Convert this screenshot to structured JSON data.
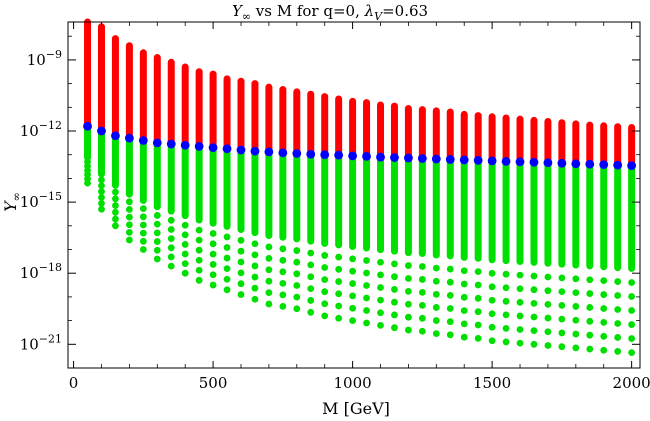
{
  "chart_data": {
    "type": "scatter",
    "title": {
      "y_symbol": "Y",
      "y_sub": "∞",
      "middle": " vs M for q=0, ",
      "lambda_symbol": "λ",
      "lambda_sub": "V",
      "lambda_value": "=0.63"
    },
    "xlabel": "M [GeV]",
    "ylabel": {
      "symbol": "Y",
      "sub": "∞"
    },
    "xlim": [
      -20,
      2030
    ],
    "ylim_log10": [
      -22.0,
      -7.4
    ],
    "x_ticks": [
      0,
      500,
      1000,
      1500,
      2000
    ],
    "x_tick_labels": [
      "0",
      "500",
      "1000",
      "1500",
      "2000"
    ],
    "y_ticks_log10": [
      -21,
      -18,
      -15,
      -12,
      -9
    ],
    "y_tick_labels": [
      {
        "base": "10",
        "exp": "−21"
      },
      {
        "base": "10",
        "exp": "−18"
      },
      {
        "base": "10",
        "exp": "−15"
      },
      {
        "base": "10",
        "exp": "−12"
      },
      {
        "base": "10",
        "exp": "−9"
      }
    ],
    "x_values": [
      50,
      100,
      150,
      200,
      250,
      300,
      350,
      400,
      450,
      500,
      550,
      600,
      650,
      700,
      750,
      800,
      850,
      900,
      950,
      1000,
      1050,
      1100,
      1150,
      1200,
      1250,
      1300,
      1350,
      1400,
      1450,
      1500,
      1550,
      1600,
      1650,
      1700,
      1750,
      1800,
      1850,
      1900,
      1950,
      2000
    ],
    "series": [
      {
        "name": "red (Y∞ above blue)",
        "color": "#ff0000",
        "top_log10": [
          -7.4,
          -7.6,
          -8.1,
          -8.4,
          -8.7,
          -8.9,
          -9.1,
          -9.3,
          -9.5,
          -9.6,
          -9.8,
          -9.9,
          -10.0,
          -10.15,
          -10.25,
          -10.35,
          -10.45,
          -10.55,
          -10.65,
          -10.75,
          -10.8,
          -10.9,
          -10.95,
          -11.05,
          -11.1,
          -11.15,
          -11.2,
          -11.3,
          -11.35,
          -11.4,
          -11.45,
          -11.5,
          -11.55,
          -11.6,
          -11.65,
          -11.7,
          -11.75,
          -11.78,
          -11.82,
          -11.85
        ]
      },
      {
        "name": "blue (boundary)",
        "color": "#0000ff",
        "log10": [
          -11.8,
          -12.0,
          -12.2,
          -12.3,
          -12.4,
          -12.5,
          -12.55,
          -12.6,
          -12.65,
          -12.7,
          -12.75,
          -12.8,
          -12.85,
          -12.88,
          -12.92,
          -12.95,
          -12.98,
          -13.0,
          -13.02,
          -13.05,
          -13.07,
          -13.1,
          -13.12,
          -13.14,
          -13.16,
          -13.18,
          -13.2,
          -13.22,
          -13.24,
          -13.26,
          -13.28,
          -13.3,
          -13.32,
          -13.34,
          -13.36,
          -13.38,
          -13.4,
          -13.42,
          -13.44,
          -13.46
        ]
      },
      {
        "name": "green (Y∞ below blue)",
        "color": "#00e000",
        "bottom_log10": [
          -14.2,
          -15.3,
          -16.0,
          -16.6,
          -17.0,
          -17.4,
          -17.7,
          -18.0,
          -18.3,
          -18.5,
          -18.7,
          -18.9,
          -19.1,
          -19.3,
          -19.4,
          -19.5,
          -19.65,
          -19.8,
          -19.9,
          -20.0,
          -20.1,
          -20.2,
          -20.3,
          -20.4,
          -20.45,
          -20.55,
          -20.6,
          -20.7,
          -20.75,
          -20.85,
          -20.9,
          -20.95,
          -21.0,
          -21.05,
          -21.1,
          -21.15,
          -21.2,
          -21.25,
          -21.3,
          -21.35
        ]
      }
    ]
  }
}
